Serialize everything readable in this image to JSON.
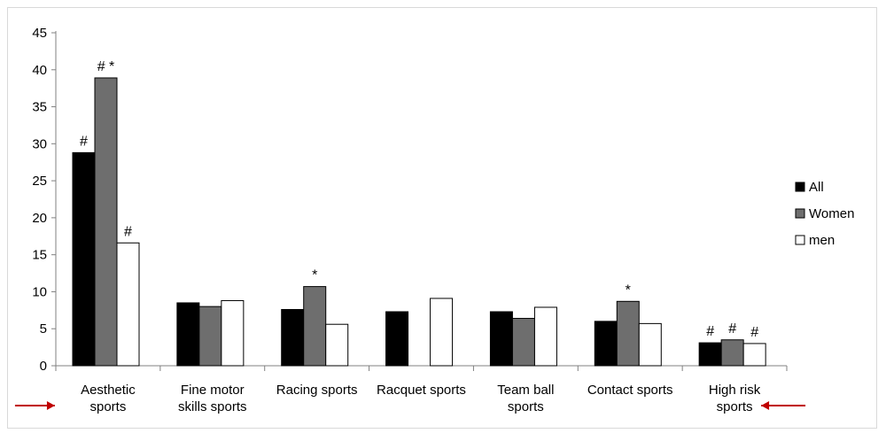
{
  "chart_data": {
    "type": "bar",
    "categories": [
      [
        "Aesthetic",
        "sports"
      ],
      [
        "Fine motor",
        "skills sports"
      ],
      [
        "Racing sports"
      ],
      [
        "Racquet sports"
      ],
      [
        "Team ball",
        "sports"
      ],
      [
        "Contact sports"
      ],
      [
        "High risk",
        "sports"
      ]
    ],
    "series": [
      {
        "name": "All",
        "values": [
          28.8,
          8.5,
          7.6,
          7.3,
          7.3,
          6.0,
          3.1
        ],
        "color": "#000000"
      },
      {
        "name": "Women",
        "values": [
          38.9,
          8.0,
          10.7,
          0,
          6.4,
          8.7,
          3.5
        ],
        "color": "#6e6e6e"
      },
      {
        "name": "men",
        "values": [
          16.6,
          8.8,
          5.6,
          9.1,
          7.9,
          5.7,
          3.0
        ],
        "color": "#ffffff"
      }
    ],
    "annotations": [
      {
        "category": 0,
        "series": 0,
        "text": "#"
      },
      {
        "category": 0,
        "series": 1,
        "text": "# *"
      },
      {
        "category": 0,
        "series": 2,
        "text": "#"
      },
      {
        "category": 2,
        "series": 1,
        "text": "*"
      },
      {
        "category": 5,
        "series": 1,
        "text": "*"
      },
      {
        "category": 6,
        "series": 0,
        "text": "#"
      },
      {
        "category": 6,
        "series": 1,
        "text": "#"
      },
      {
        "category": 6,
        "series": 2,
        "text": "#"
      }
    ],
    "arrows": [
      {
        "category": 0,
        "direction": "right",
        "color": "#c00000"
      },
      {
        "category": 6,
        "direction": "left",
        "color": "#c00000"
      }
    ],
    "yticks": [
      0,
      5,
      10,
      15,
      20,
      25,
      30,
      35,
      40,
      45
    ],
    "ylim": [
      0,
      45
    ],
    "legend_position": "right",
    "grid": false,
    "title": "",
    "xlabel": "",
    "ylabel": ""
  }
}
